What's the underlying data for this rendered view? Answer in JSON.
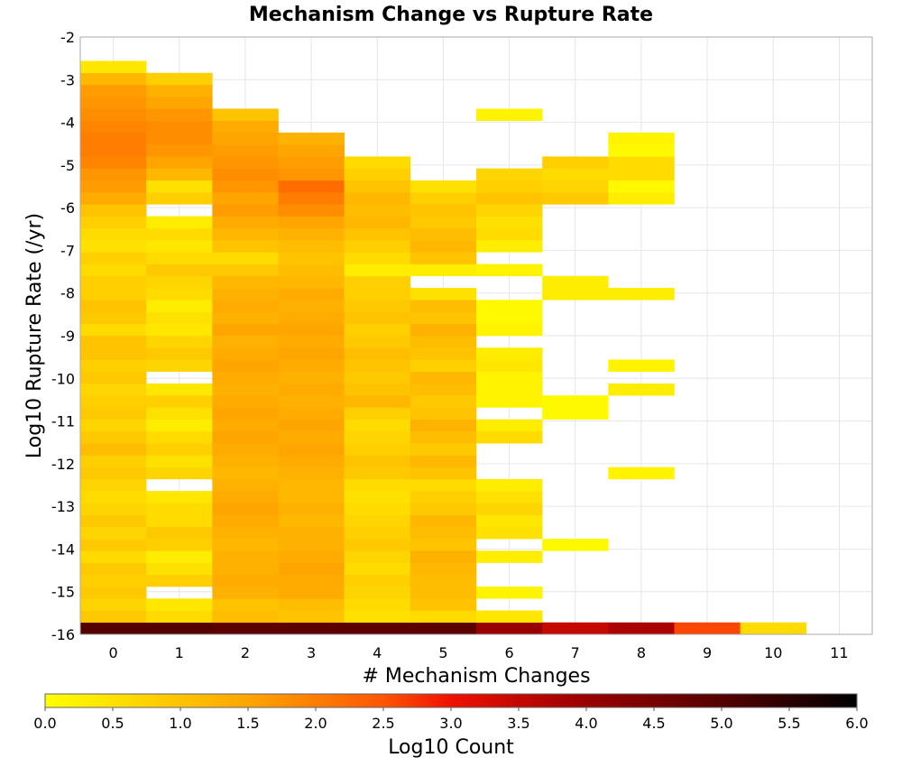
{
  "chart_data": {
    "type": "heatmap",
    "title": "Mechanism Change vs Rupture Rate",
    "xlabel": "# Mechanism Changes",
    "ylabel": "Log10 Rupture Rate (/yr)",
    "xlim": [
      -0.5,
      11.5
    ],
    "ylim": [
      -16,
      -2
    ],
    "x_ticks": [
      0,
      1,
      2,
      3,
      4,
      5,
      6,
      7,
      8,
      9,
      10,
      11
    ],
    "y_ticks": [
      -2,
      -3,
      -4,
      -5,
      -6,
      -7,
      -8,
      -9,
      -10,
      -11,
      -12,
      -13,
      -14,
      -15,
      -16
    ],
    "bin_height": 0.28,
    "grid": true,
    "colorbar": {
      "label": "Log10 Count",
      "min": 0.0,
      "max": 6.0,
      "ticks": [
        "0.0",
        "0.5",
        "1.0",
        "1.5",
        "2.0",
        "2.5",
        "3.0",
        "3.5",
        "4.0",
        "4.5",
        "5.0",
        "5.5",
        "6.0"
      ],
      "stops": [
        {
          "v": 0.0,
          "color": "#ffff00"
        },
        {
          "v": 1.5,
          "color": "#ffa500"
        },
        {
          "v": 2.5,
          "color": "#ff5500"
        },
        {
          "v": 3.0,
          "color": "#ee1100"
        },
        {
          "v": 4.0,
          "color": "#990000"
        },
        {
          "v": 5.0,
          "color": "#550000"
        },
        {
          "v": 6.0,
          "color": "#000000"
        }
      ]
    },
    "columns": [
      {
        "x": 0,
        "start": -16,
        "values": [
          5.0,
          0.9,
          0.7,
          0.9,
          0.8,
          0.9,
          0.6,
          0.9,
          0.7,
          0.9,
          0.7,
          0.6,
          0.7,
          0.9,
          0.8,
          1.1,
          0.9,
          0.7,
          0.9,
          0.8,
          0.7,
          0.9,
          0.8,
          1.0,
          1.0,
          0.6,
          0.9,
          1.0,
          0.8,
          0.8,
          0.6,
          0.8,
          0.5,
          0.6,
          0.8,
          1.0,
          1.4,
          1.6,
          1.7,
          1.9,
          2.0,
          2.0,
          1.9,
          1.8,
          1.7,
          1.6,
          1.2,
          0.4
        ]
      },
      {
        "x": 1,
        "start": -16,
        "values": [
          5.0,
          0.6,
          0.4,
          null,
          0.8,
          0.5,
          0.3,
          0.8,
          0.9,
          0.6,
          0.6,
          0.4,
          null,
          0.7,
          0.5,
          0.8,
          0.6,
          0.3,
          0.5,
          0.8,
          0.4,
          null,
          0.7,
          0.9,
          0.7,
          0.4,
          0.5,
          0.3,
          0.6,
          0.7,
          0.9,
          0.6,
          0.4,
          0.6,
          0.3,
          null,
          0.8,
          0.5,
          1.2,
          1.5,
          1.7,
          1.8,
          1.8,
          1.7,
          1.5,
          1.3,
          0.8
        ]
      },
      {
        "x": 2,
        "start": -16,
        "values": [
          4.9,
          1.1,
          1.0,
          1.3,
          1.4,
          1.3,
          1.3,
          1.2,
          1.3,
          1.4,
          1.5,
          1.4,
          1.3,
          1.2,
          1.3,
          1.4,
          1.5,
          1.4,
          1.5,
          1.4,
          1.3,
          1.4,
          1.5,
          1.4,
          1.3,
          1.5,
          1.3,
          1.4,
          1.3,
          1.2,
          0.9,
          0.6,
          1.0,
          1.2,
          1.4,
          1.6,
          1.5,
          1.7,
          1.8,
          1.7,
          1.6,
          1.5,
          1.4,
          1.0
        ]
      },
      {
        "x": 3,
        "start": -16,
        "values": [
          4.9,
          1.0,
          1.1,
          1.4,
          1.4,
          1.5,
          1.4,
          1.3,
          1.3,
          1.2,
          1.3,
          1.2,
          1.2,
          1.3,
          1.4,
          1.5,
          1.4,
          1.5,
          1.4,
          1.3,
          1.4,
          1.3,
          1.4,
          1.5,
          1.4,
          1.5,
          1.4,
          1.3,
          1.4,
          1.2,
          1.1,
          1.0,
          1.1,
          1.3,
          1.5,
          1.8,
          2.0,
          2.2,
          1.7,
          1.6,
          1.5,
          1.3
        ]
      },
      {
        "x": 4,
        "start": -16,
        "values": [
          4.9,
          0.5,
          0.6,
          0.7,
          0.8,
          0.6,
          0.7,
          0.9,
          0.8,
          0.7,
          0.6,
          0.5,
          0.6,
          0.9,
          1.0,
          0.8,
          0.7,
          0.6,
          0.8,
          1.2,
          1.0,
          0.9,
          1.0,
          1.1,
          0.9,
          0.8,
          1.0,
          0.9,
          0.8,
          0.8,
          0.3,
          0.6,
          0.8,
          1.0,
          1.2,
          1.1,
          1.2,
          1.0,
          0.8,
          0.6
        ]
      },
      {
        "x": 5,
        "start": -16,
        "values": [
          4.9,
          0.6,
          1.0,
          1.1,
          1.1,
          1.2,
          1.3,
          1.0,
          1.1,
          1.2,
          0.9,
          0.8,
          0.6,
          1.0,
          1.2,
          0.9,
          1.1,
          1.3,
          1.0,
          0.9,
          1.1,
          1.2,
          0.8,
          1.0,
          1.1,
          1.3,
          1.0,
          1.1,
          0.5,
          null,
          0.3,
          1.0,
          1.2,
          1.1,
          0.9,
          1.0,
          0.8,
          0.5
        ]
      },
      {
        "x": 6,
        "start": -16,
        "values": [
          4.0,
          0.4,
          null,
          0.2,
          null,
          null,
          0.3,
          null,
          0.5,
          0.4,
          0.7,
          0.5,
          0.3,
          null,
          null,
          null,
          0.6,
          0.3,
          null,
          0.2,
          0.2,
          0.2,
          0.4,
          0.3,
          null,
          0.2,
          0.1,
          0.1,
          null,
          null,
          0.2,
          null,
          0.3,
          0.6,
          0.5,
          0.7,
          1.0,
          0.8,
          0.7,
          null,
          null,
          null,
          null,
          0.2
        ]
      },
      {
        "x": 7,
        "start": -16,
        "values": [
          3.5,
          null,
          null,
          null,
          null,
          null,
          null,
          0.1,
          null,
          null,
          null,
          null,
          null,
          null,
          null,
          null,
          null,
          null,
          0.1,
          0.1,
          null,
          null,
          null,
          null,
          null,
          null,
          null,
          null,
          0.3,
          0.3,
          null,
          null,
          null,
          null,
          null,
          null,
          0.9,
          0.7,
          0.6,
          0.8
        ]
      },
      {
        "x": 8,
        "start": -16,
        "values": [
          3.8,
          null,
          null,
          null,
          null,
          null,
          null,
          null,
          null,
          null,
          null,
          null,
          null,
          0.2,
          null,
          null,
          null,
          null,
          null,
          null,
          0.3,
          null,
          0.2,
          null,
          null,
          null,
          null,
          null,
          0.3,
          null,
          null,
          null,
          null,
          null,
          null,
          null,
          0.3,
          0.1,
          0.6,
          0.6,
          0.1,
          0.2
        ]
      },
      {
        "x": 9,
        "start": -16,
        "values": [
          2.6
        ]
      },
      {
        "x": 10,
        "start": -16,
        "values": [
          0.6
        ]
      }
    ]
  }
}
